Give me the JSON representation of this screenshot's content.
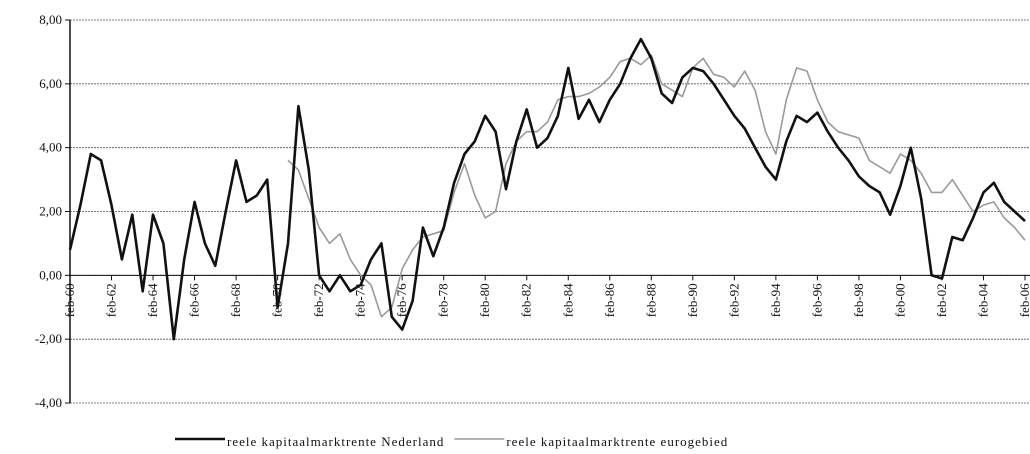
{
  "chart_data": {
    "type": "line",
    "categories": [
      "feb-60",
      null,
      null,
      null,
      "feb-62",
      null,
      null,
      null,
      "feb-64",
      null,
      null,
      null,
      "feb-66",
      null,
      null,
      null,
      "feb-68",
      null,
      null,
      null,
      "feb-70",
      null,
      null,
      null,
      "feb-72",
      null,
      null,
      null,
      "feb-74",
      null,
      null,
      null,
      "feb-76",
      null,
      null,
      null,
      "feb-78",
      null,
      null,
      null,
      "feb-80",
      null,
      null,
      null,
      "feb-82",
      null,
      null,
      null,
      "feb-84",
      null,
      null,
      null,
      "feb-86",
      null,
      null,
      null,
      "feb-88",
      null,
      null,
      null,
      "feb-90",
      null,
      null,
      null,
      "feb-92",
      null,
      null,
      null,
      "feb-94",
      null,
      null,
      null,
      "feb-96",
      null,
      null,
      null,
      "feb-98",
      null,
      null,
      null,
      "feb-00",
      null,
      null,
      null,
      "feb-02",
      null,
      null,
      null,
      "feb-04",
      null,
      null,
      null,
      "feb-06"
    ],
    "series": [
      {
        "name": "reele kapitaalmarktrente Nederland",
        "color": "#111111",
        "values": [
          0.8,
          2.2,
          3.8,
          3.6,
          2.2,
          0.5,
          1.9,
          -0.5,
          1.9,
          1.0,
          -2.0,
          0.5,
          2.3,
          1.0,
          0.3,
          2.0,
          3.6,
          2.3,
          2.5,
          3.0,
          -1.0,
          1.0,
          5.3,
          3.3,
          0.0,
          -0.5,
          0.0,
          -0.5,
          -0.3,
          0.5,
          1.0,
          -1.3,
          -1.7,
          -0.8,
          1.5,
          0.6,
          1.5,
          2.9,
          3.8,
          4.2,
          5.0,
          4.5,
          2.7,
          4.2,
          5.2,
          4.0,
          4.3,
          5.0,
          6.5,
          4.9,
          5.5,
          4.8,
          5.5,
          6.0,
          6.8,
          7.4,
          6.8,
          5.7,
          5.4,
          6.2,
          6.5,
          6.4,
          6.0,
          5.5,
          5.0,
          4.6,
          4.0,
          3.4,
          3.0,
          4.2,
          5.0,
          4.8,
          5.1,
          4.5,
          4.0,
          3.6,
          3.1,
          2.8,
          2.6,
          1.9,
          2.8,
          4.0,
          2.4,
          0.0,
          -0.1,
          1.2,
          1.1,
          1.8,
          2.6,
          2.9,
          2.3,
          2.0,
          1.7
        ]
      },
      {
        "name": "reele kapitaalmarktrente eurogebied",
        "color": "#9a9a9a",
        "values": [
          null,
          null,
          null,
          null,
          null,
          null,
          null,
          null,
          null,
          null,
          null,
          null,
          null,
          null,
          null,
          null,
          null,
          null,
          null,
          null,
          null,
          3.6,
          3.3,
          2.4,
          1.5,
          1.0,
          1.3,
          0.5,
          0.0,
          -0.3,
          -1.3,
          -1.0,
          0.2,
          0.8,
          1.2,
          1.3,
          1.4,
          2.6,
          3.5,
          2.5,
          1.8,
          2.0,
          3.5,
          4.2,
          4.5,
          4.5,
          4.8,
          5.5,
          5.6,
          5.6,
          5.7,
          5.9,
          6.2,
          6.7,
          6.8,
          6.6,
          6.9,
          6.0,
          5.8,
          5.6,
          6.5,
          6.8,
          6.3,
          6.2,
          5.9,
          6.4,
          5.8,
          4.5,
          3.8,
          5.5,
          6.5,
          6.4,
          5.5,
          4.8,
          4.5,
          4.4,
          4.3,
          3.6,
          3.4,
          3.2,
          3.8,
          3.6,
          3.2,
          2.6,
          2.6,
          3.0,
          2.5,
          2.0,
          2.2,
          2.3,
          1.8,
          1.5,
          1.1
        ]
      }
    ],
    "ylim": [
      -4,
      8
    ],
    "yticks": [
      {
        "value": 8,
        "label": "8,00"
      },
      {
        "value": 6,
        "label": "6,00"
      },
      {
        "value": 4,
        "label": "4,00"
      },
      {
        "value": 2,
        "label": "2,00"
      },
      {
        "value": 0,
        "label": "0,00"
      },
      {
        "value": -2,
        "label": "-2,00"
      },
      {
        "value": -4,
        "label": "-4,00"
      }
    ],
    "grid": true
  }
}
